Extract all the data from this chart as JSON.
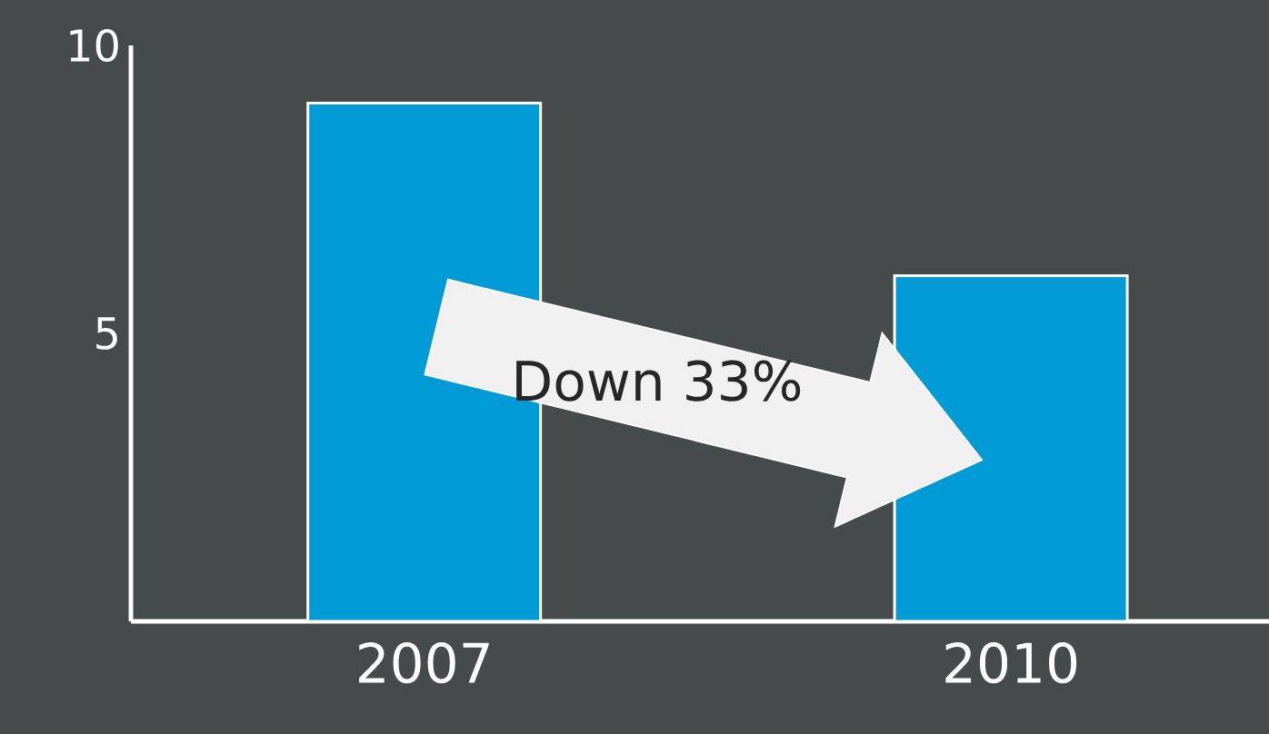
{
  "chart_data": {
    "type": "bar",
    "categories": [
      "2007",
      "2010"
    ],
    "values": [
      9,
      6
    ],
    "color": "#009ad6",
    "ylim": [
      0,
      10
    ],
    "yticks": [
      5,
      10
    ],
    "grid": false,
    "annotations": [
      "Down 33%"
    ]
  }
}
